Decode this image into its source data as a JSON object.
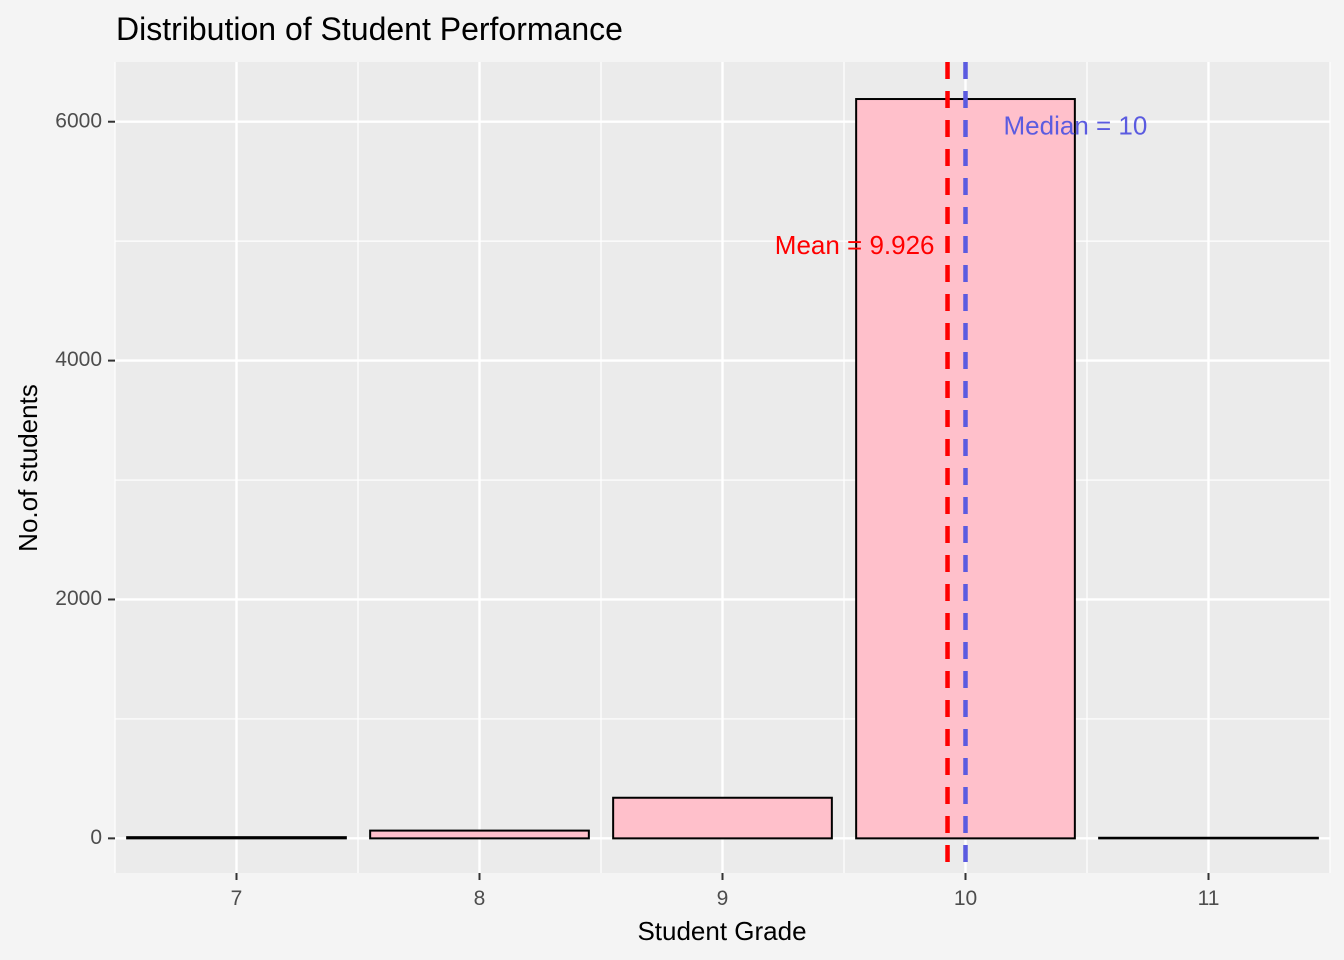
{
  "chart_data": {
    "type": "bar",
    "title": "Distribution of Student Performance",
    "xlabel": "Student Grade",
    "ylabel": "No.of students",
    "categories": [
      "7",
      "8",
      "9",
      "10",
      "11"
    ],
    "x": [
      7,
      8,
      9,
      10,
      11
    ],
    "values": [
      10,
      65,
      340,
      6190,
      5
    ],
    "xlim": [
      6.5,
      11.5
    ],
    "ylim": [
      -290,
      6500
    ],
    "yticks": [
      0,
      2000,
      4000,
      6000
    ],
    "grid": true,
    "bar_fill": "#FFC0CB",
    "bar_outline": "#000000",
    "panel_background": "#EBEBEB",
    "plot_background": "#F4F4F4",
    "reference_lines": [
      {
        "label": "Mean = 9.926",
        "value": 9.926,
        "color": "#FF0000",
        "style": "dashed"
      },
      {
        "label": "Median = 10",
        "value": 10,
        "color": "#5B5BE0",
        "style": "dashed"
      }
    ]
  }
}
